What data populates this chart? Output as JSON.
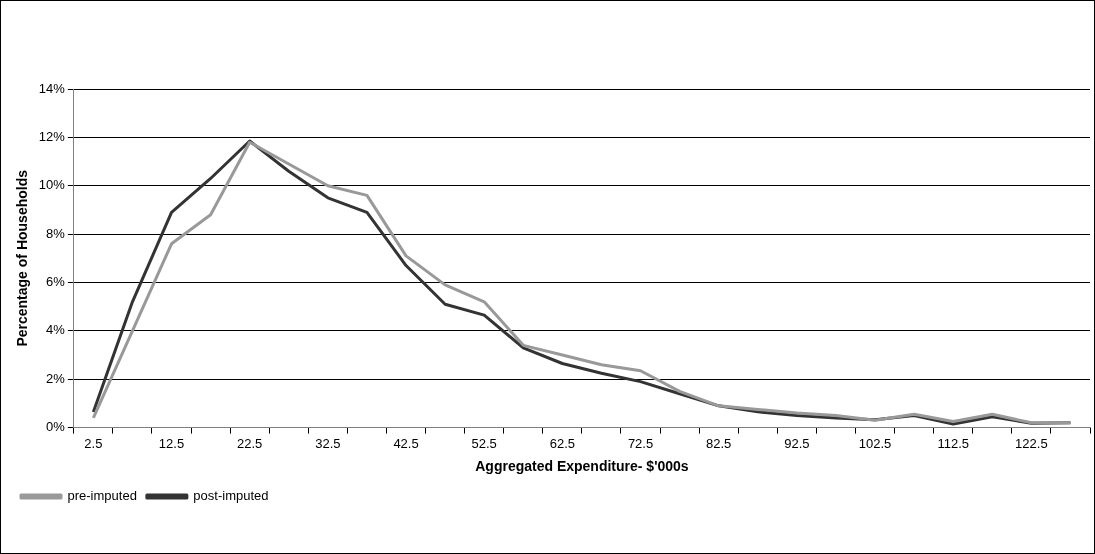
{
  "chart_data": {
    "type": "line",
    "xlabel": "Aggregated Expenditure- $'000s",
    "ylabel": "Percentage of Households",
    "categories": [
      "2.5",
      null,
      "12.5",
      null,
      "22.5",
      null,
      "32.5",
      null,
      "42.5",
      null,
      "52.5",
      null,
      "62.5",
      null,
      "72.5",
      null,
      "82.5",
      null,
      "92.5",
      null,
      "102.5",
      null,
      "112.5",
      null,
      "122.5",
      null
    ],
    "series": [
      {
        "name": "pre-imputed",
        "color": "#999999",
        "values": [
          0.4,
          4.0,
          7.6,
          8.8,
          11.8,
          10.9,
          10.0,
          9.6,
          7.1,
          5.9,
          5.2,
          3.4,
          3.0,
          2.6,
          2.35,
          1.5,
          0.9,
          0.75,
          0.6,
          0.5,
          0.3,
          0.55,
          0.25,
          0.55,
          0.2,
          0.2
        ]
      },
      {
        "name": "post-imputed",
        "color": "#333333",
        "values": [
          0.65,
          5.2,
          8.9,
          10.3,
          11.85,
          10.6,
          9.5,
          8.9,
          6.7,
          5.1,
          4.65,
          3.3,
          2.65,
          2.25,
          1.9,
          1.4,
          0.9,
          0.65,
          0.5,
          0.4,
          0.32,
          0.5,
          0.15,
          0.45,
          0.18,
          0.2
        ]
      }
    ],
    "ylim": [
      0,
      14
    ],
    "yticks": [
      {
        "value": 0,
        "label": "0%"
      },
      {
        "value": 2,
        "label": "2%"
      },
      {
        "value": 4,
        "label": "4%"
      },
      {
        "value": 6,
        "label": "6%"
      },
      {
        "value": 8,
        "label": "8%"
      },
      {
        "value": 10,
        "label": "10%"
      },
      {
        "value": 12,
        "label": "12%"
      },
      {
        "value": 14,
        "label": "14%"
      }
    ],
    "grid": "y",
    "legend": "bottom left",
    "marker": "none",
    "line_style": "solid"
  }
}
